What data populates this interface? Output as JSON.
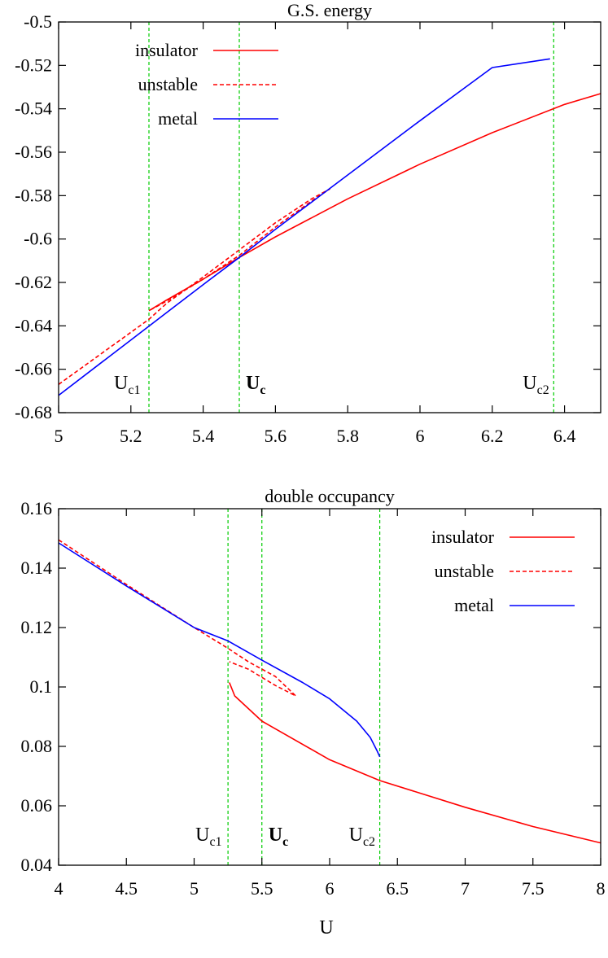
{
  "chart_data": [
    {
      "type": "line",
      "title": "G.S. energy",
      "xlabel": "",
      "ylabel": "",
      "xlim": [
        5,
        6.5
      ],
      "ylim": [
        -0.68,
        -0.5
      ],
      "xticks": [
        "5",
        "5.2",
        "5.4",
        "5.6",
        "5.8",
        "6",
        "6.2",
        "6.4"
      ],
      "yticks": [
        "-0.5",
        "-0.52",
        "-0.54",
        "-0.56",
        "-0.58",
        "-0.6",
        "-0.62",
        "-0.64",
        "-0.66",
        "-0.68"
      ],
      "legend_position": "top-left",
      "vertical_markers": [
        {
          "x": 5.25,
          "label": "U",
          "sub": "c1",
          "bold": false
        },
        {
          "x": 5.5,
          "label": "U",
          "sub": "c",
          "bold": true
        },
        {
          "x": 6.37,
          "label": "U",
          "sub": "c2",
          "bold": false
        }
      ],
      "series": [
        {
          "name": "insulator",
          "color": "#ff0000",
          "style": "solid",
          "x": [
            5.25,
            5.3,
            5.4,
            5.5,
            5.6,
            5.8,
            6.0,
            6.2,
            6.4,
            6.5
          ],
          "y": [
            -0.633,
            -0.628,
            -0.6185,
            -0.6085,
            -0.599,
            -0.5815,
            -0.5655,
            -0.551,
            -0.538,
            -0.533
          ]
        },
        {
          "name": "unstable",
          "color": "#ff0000",
          "style": "dashed",
          "x": [
            5.0,
            5.1,
            5.2,
            5.25,
            5.3,
            5.4,
            5.5,
            5.6,
            5.7,
            5.75,
            5.7,
            5.6,
            5.5,
            5.4,
            5.3,
            5.25
          ],
          "y": [
            -0.667,
            -0.655,
            -0.643,
            -0.637,
            -0.6295,
            -0.6175,
            -0.605,
            -0.5925,
            -0.5815,
            -0.577,
            -0.5825,
            -0.5945,
            -0.6075,
            -0.6185,
            -0.6285,
            -0.633
          ]
        },
        {
          "name": "metal",
          "color": "#0000ff",
          "style": "solid",
          "x": [
            5.0,
            5.2,
            5.4,
            5.5,
            5.6,
            5.8,
            6.0,
            6.2,
            6.36
          ],
          "y": [
            -0.672,
            -0.6465,
            -0.621,
            -0.6085,
            -0.5955,
            -0.5705,
            -0.5455,
            -0.521,
            -0.517
          ]
        }
      ]
    },
    {
      "type": "line",
      "title": "double occupancy",
      "xlabel": "U",
      "ylabel": "",
      "xlim": [
        4,
        8
      ],
      "ylim": [
        0.04,
        0.16
      ],
      "xticks": [
        "4",
        "4.5",
        "5",
        "5.5",
        "6",
        "6.5",
        "7",
        "7.5",
        "8"
      ],
      "yticks": [
        "0.16",
        "0.14",
        "0.12",
        "0.1",
        "0.08",
        "0.06",
        "0.04"
      ],
      "legend_position": "top-right",
      "vertical_markers": [
        {
          "x": 5.25,
          "label": "U",
          "sub": "c1",
          "bold": false
        },
        {
          "x": 5.5,
          "label": "U",
          "sub": "c",
          "bold": true
        },
        {
          "x": 6.37,
          "label": "U",
          "sub": "c2",
          "bold": false
        }
      ],
      "series": [
        {
          "name": "insulator",
          "color": "#ff0000",
          "style": "solid",
          "x": [
            5.26,
            5.3,
            5.5,
            6.0,
            6.37,
            7.0,
            7.5,
            8.0
          ],
          "y": [
            0.1015,
            0.097,
            0.0885,
            0.0755,
            0.0685,
            0.0595,
            0.053,
            0.0475
          ]
        },
        {
          "name": "unstable",
          "color": "#ff0000",
          "style": "dashed",
          "x": [
            4.0,
            4.5,
            5.0,
            5.25,
            5.4,
            5.6,
            5.75,
            5.6,
            5.4,
            5.26
          ],
          "y": [
            0.1495,
            0.1345,
            0.12,
            0.113,
            0.1085,
            0.1035,
            0.097,
            0.1005,
            0.106,
            0.1085
          ]
        },
        {
          "name": "metal",
          "color": "#0000ff",
          "style": "solid",
          "x": [
            4.0,
            4.5,
            5.0,
            5.25,
            5.5,
            5.8,
            6.0,
            6.2,
            6.3,
            6.35,
            6.37
          ],
          "y": [
            0.1485,
            0.134,
            0.12,
            0.1155,
            0.109,
            0.1015,
            0.096,
            0.0885,
            0.083,
            0.0785,
            0.0765
          ]
        }
      ]
    }
  ]
}
